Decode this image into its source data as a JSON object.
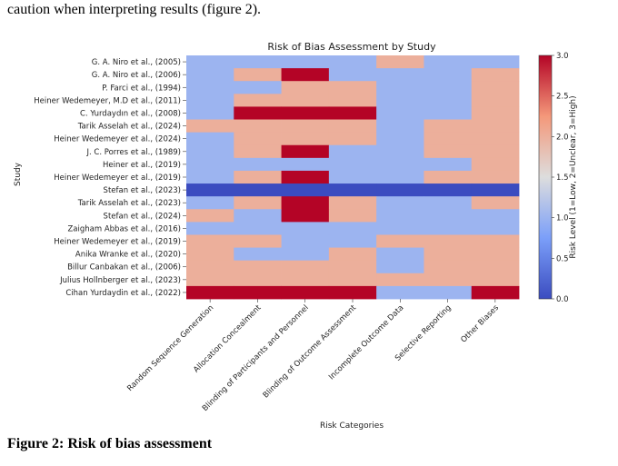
{
  "page": {
    "body_text": "caution when interpreting results (figure 2).",
    "caption": "Figure 2: Risk of bias assessment"
  },
  "chart_data": {
    "type": "heatmap",
    "title": "Risk of Bias Assessment by Study",
    "xlabel": "Risk Categories",
    "ylabel": "Study",
    "colorbar_label": "Risk Level (1=Low, 2=Unclear, 3=High)",
    "colorbar_range": [
      0.0,
      3.0
    ],
    "colorbar_ticks": [
      "0.0",
      "0.5",
      "1.0",
      "1.5",
      "2.0",
      "2.5",
      "3.0"
    ],
    "colormap": "coolwarm",
    "categories": [
      "Random Sequence Generation",
      "Allocation Concealment",
      "Blinding of Participants and Personnel",
      "Blinding of Outcome Assessment",
      "Incomplete Outcome Data",
      "Selective Reporting",
      "Other Biases"
    ],
    "studies": [
      "G. A. Niro et al., (2005)",
      "G. A. Niro et al., (2006)",
      "P. Farci et al., (1994)",
      "Heiner Wedemeyer, M.D et al., (2011)",
      "C. Yurdaydın et al., (2008)",
      "Tarik Asselah et al., (2024)",
      "Heiner Wedemeyer et al., (2024)",
      "J. C. Porres et al., (1989)",
      "Heiner et al., (2019)",
      "Heiner Wedemeyer et al., (2019)",
      "Stefan et al., (2023)",
      "Tarik Asselah et al., (2023)",
      "Stefan et al., (2024)",
      "Zaigham Abbas et al., (2016)",
      "Heiner Wedemeyer et al., (2019)",
      "Anika Wranke et al., (2020)",
      "Billur Canbakan et al., (2006)",
      "Julius Hollnberger et al., (2023)",
      "Cihan Yurdaydin et al., (2022)"
    ],
    "values": [
      [
        1,
        1,
        1,
        1,
        2,
        1,
        1
      ],
      [
        1,
        2,
        3,
        1,
        1,
        1,
        2
      ],
      [
        1,
        1,
        2,
        2,
        1,
        1,
        2
      ],
      [
        1,
        2,
        2,
        2,
        1,
        1,
        2
      ],
      [
        1,
        3,
        3,
        3,
        1,
        1,
        2
      ],
      [
        2,
        2,
        2,
        2,
        1,
        2,
        2
      ],
      [
        1,
        2,
        2,
        2,
        1,
        2,
        2
      ],
      [
        1,
        2,
        3,
        1,
        1,
        2,
        2
      ],
      [
        1,
        1,
        1,
        1,
        1,
        1,
        2
      ],
      [
        1,
        2,
        3,
        1,
        1,
        2,
        2
      ],
      [
        0,
        0,
        0,
        0,
        0,
        0,
        0
      ],
      [
        1,
        2,
        3,
        2,
        1,
        1,
        2
      ],
      [
        2,
        1,
        3,
        2,
        1,
        1,
        1
      ],
      [
        1,
        1,
        1,
        1,
        1,
        1,
        1
      ],
      [
        2,
        2,
        1,
        1,
        2,
        2,
        2
      ],
      [
        2,
        1,
        1,
        2,
        1,
        2,
        2
      ],
      [
        2,
        2,
        2,
        2,
        1,
        2,
        2
      ],
      [
        2,
        2,
        2,
        2,
        2,
        2,
        2
      ],
      [
        3,
        3,
        3,
        3,
        1,
        1,
        3
      ]
    ]
  }
}
